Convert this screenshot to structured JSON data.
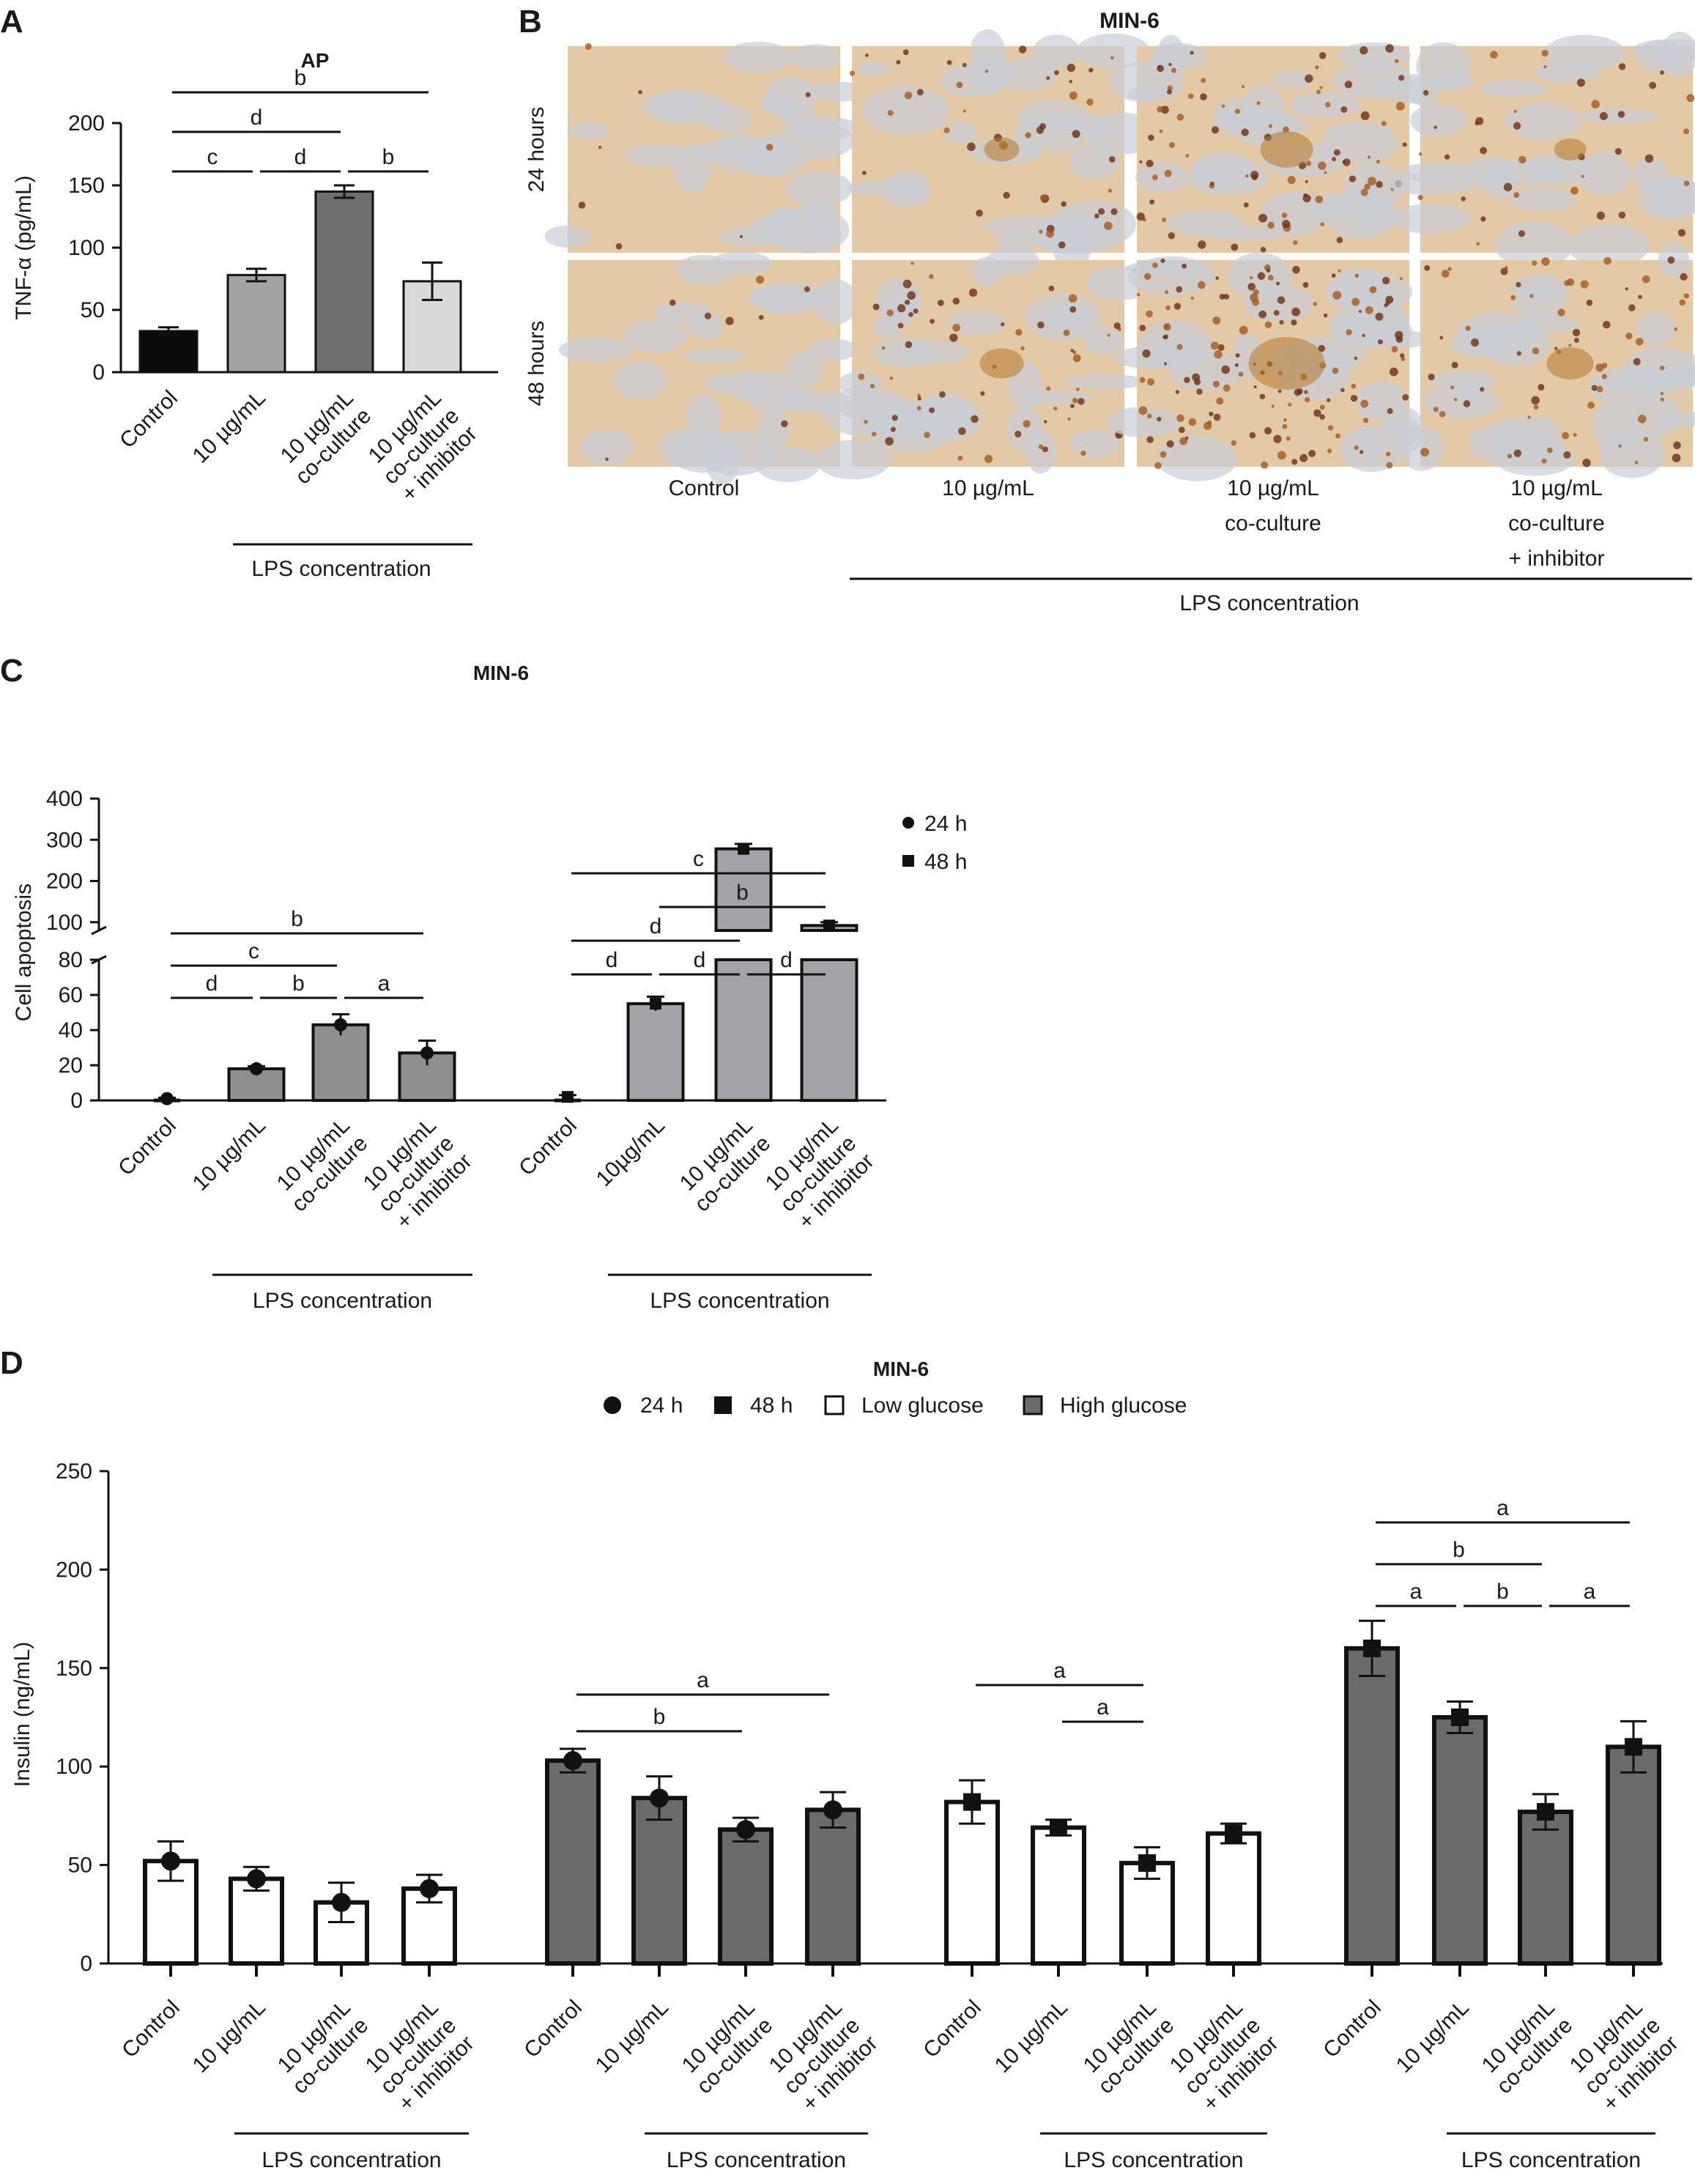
{
  "panels": {
    "A": {
      "letter": "A",
      "chart_data": {
        "type": "bar",
        "title": "AP",
        "ylabel": "TNF-α (pg/mL)",
        "ylim": [
          0,
          200
        ],
        "yticks": [
          0,
          50,
          100,
          150,
          200
        ],
        "categories": [
          "Control",
          "10 µg/mL",
          "10 µg/mL co-culture",
          "10 µg/mL co-culture + inhibitor"
        ],
        "values": [
          33,
          78,
          145,
          73
        ],
        "errors": [
          3,
          5,
          5,
          15
        ],
        "colors": [
          "#0a0a0a",
          "#a3a3a3",
          "#6e6e6e",
          "#d9d9d9"
        ],
        "group_label": "LPS concentration",
        "significance": [
          {
            "from": 1,
            "to": 2,
            "label": "c"
          },
          {
            "from": 2,
            "to": 3,
            "label": "d"
          },
          {
            "from": 3,
            "to": 4,
            "label": "b"
          },
          {
            "from": 1,
            "to": 3,
            "label": "d"
          },
          {
            "from": 1,
            "to": 4,
            "label": "b"
          }
        ]
      }
    },
    "B": {
      "letter": "B",
      "title": "MIN-6",
      "row_labels": [
        "24 hours",
        "48 hours"
      ],
      "col_labels": [
        "Control",
        "10 µg/mL",
        "10 µg/mL\nco-culture",
        "10 µg/mL\nco-culture\n+ inhibitor"
      ],
      "group_label": "LPS concentration",
      "stain_intensity": [
        [
          0.05,
          0.3,
          0.6,
          0.25
        ],
        [
          0.05,
          0.45,
          1.0,
          0.5
        ]
      ]
    },
    "C": {
      "letter": "C",
      "chart_data": {
        "type": "bar",
        "title": "MIN-6",
        "ylabel": "Cell apoptosis",
        "broken_axis": {
          "lower": [
            0,
            80
          ],
          "upper": [
            80,
            400
          ]
        },
        "yticks_lower": [
          0,
          20,
          40,
          60,
          80
        ],
        "yticks_upper": [
          100,
          200,
          300,
          400
        ],
        "legend": [
          "24 h",
          "48 h"
        ],
        "groups": [
          {
            "name": "24 h",
            "marker": "circle",
            "categories": [
              "Control",
              "10 µg/mL",
              "10 µg/mL co-culture",
              "10 µg/mL co-culture + inhibitor"
            ],
            "values": [
              1,
              18,
              43,
              27
            ],
            "errors": [
              0.5,
              1.5,
              6,
              7
            ],
            "group_label": "LPS concentration",
            "significance": [
              {
                "from": 1,
                "to": 2,
                "label": "d"
              },
              {
                "from": 2,
                "to": 3,
                "label": "b"
              },
              {
                "from": 3,
                "to": 4,
                "label": "a"
              },
              {
                "from": 1,
                "to": 3,
                "label": "c"
              },
              {
                "from": 1,
                "to": 4,
                "label": "b"
              }
            ]
          },
          {
            "name": "48 h",
            "marker": "square",
            "categories": [
              "Control",
              "10µg/mL",
              "10 µg/mL co-culture",
              "10 µg/mL co-culture + inhibitor"
            ],
            "values": [
              2,
              55,
              278,
              92
            ],
            "errors": [
              1,
              4,
              12,
              8
            ],
            "group_label": "LPS concentration",
            "significance": [
              {
                "from": 1,
                "to": 2,
                "label": "d"
              },
              {
                "from": 2,
                "to": 3,
                "label": "d"
              },
              {
                "from": 3,
                "to": 4,
                "label": "d"
              },
              {
                "from": 1,
                "to": 3,
                "label": "d"
              },
              {
                "from": 2,
                "to": 4,
                "label": "b"
              },
              {
                "from": 1,
                "to": 4,
                "label": "c"
              }
            ]
          }
        ]
      }
    },
    "D": {
      "letter": "D",
      "chart_data": {
        "type": "bar",
        "title": "MIN-6",
        "ylabel": "Insulin (ng/mL)",
        "ylim": [
          0,
          250
        ],
        "yticks": [
          0,
          50,
          100,
          150,
          200,
          250
        ],
        "legend": [
          "24 h",
          "48 h",
          "Low glucose",
          "High glucose"
        ],
        "groups": [
          {
            "categories": [
              "Control",
              "10 µg/mL",
              "10 µg/mL co-culture",
              "10 µg/mL co-culture + inhibitor"
            ],
            "values": [
              52,
              43,
              31,
              38
            ],
            "errors": [
              10,
              6,
              10,
              7
            ],
            "marker": "circle",
            "fill": "#ffffff",
            "group_label": "LPS concentration",
            "significance": []
          },
          {
            "categories": [
              "Control",
              "10 µg/mL",
              "10 µg/mL co-culture",
              "10 µg/mL co-culture + inhibitor"
            ],
            "values": [
              103,
              84,
              68,
              78
            ],
            "errors": [
              6,
              11,
              6,
              9
            ],
            "marker": "circle",
            "fill": "#6b6b6b",
            "group_label": "LPS concentration",
            "significance": [
              {
                "from": 1,
                "to": 3,
                "label": "b"
              },
              {
                "from": 1,
                "to": 4,
                "label": "a"
              }
            ]
          },
          {
            "categories": [
              "Control",
              "10 µg/mL",
              "10 µg/mL co-culture",
              "10 µg/mL co-culture + inhibitor"
            ],
            "values": [
              82,
              69,
              51,
              66
            ],
            "errors": [
              11,
              4,
              8,
              5
            ],
            "marker": "square",
            "fill": "#ffffff",
            "group_label": "LPS concentration",
            "significance": [
              {
                "from": 1,
                "to": 3,
                "label": "a"
              },
              {
                "from": 2,
                "to": 3,
                "label": "a"
              }
            ]
          },
          {
            "categories": [
              "Control",
              "10 µg/mL",
              "10 µg/mL co-culture",
              "10 µg/mL co-culture + inhibitor"
            ],
            "values": [
              160,
              125,
              77,
              110
            ],
            "errors": [
              14,
              8,
              9,
              13
            ],
            "marker": "square",
            "fill": "#6b6b6b",
            "group_label": "LPS concentration",
            "significance": [
              {
                "from": 1,
                "to": 2,
                "label": "a"
              },
              {
                "from": 3,
                "to": 4,
                "label": "a"
              },
              {
                "from": 1,
                "to": 3,
                "label": "b"
              },
              {
                "from": 1,
                "to": 4,
                "label": "a"
              },
              {
                "from": 2,
                "to": 3,
                "label": "b"
              }
            ]
          }
        ]
      }
    }
  }
}
